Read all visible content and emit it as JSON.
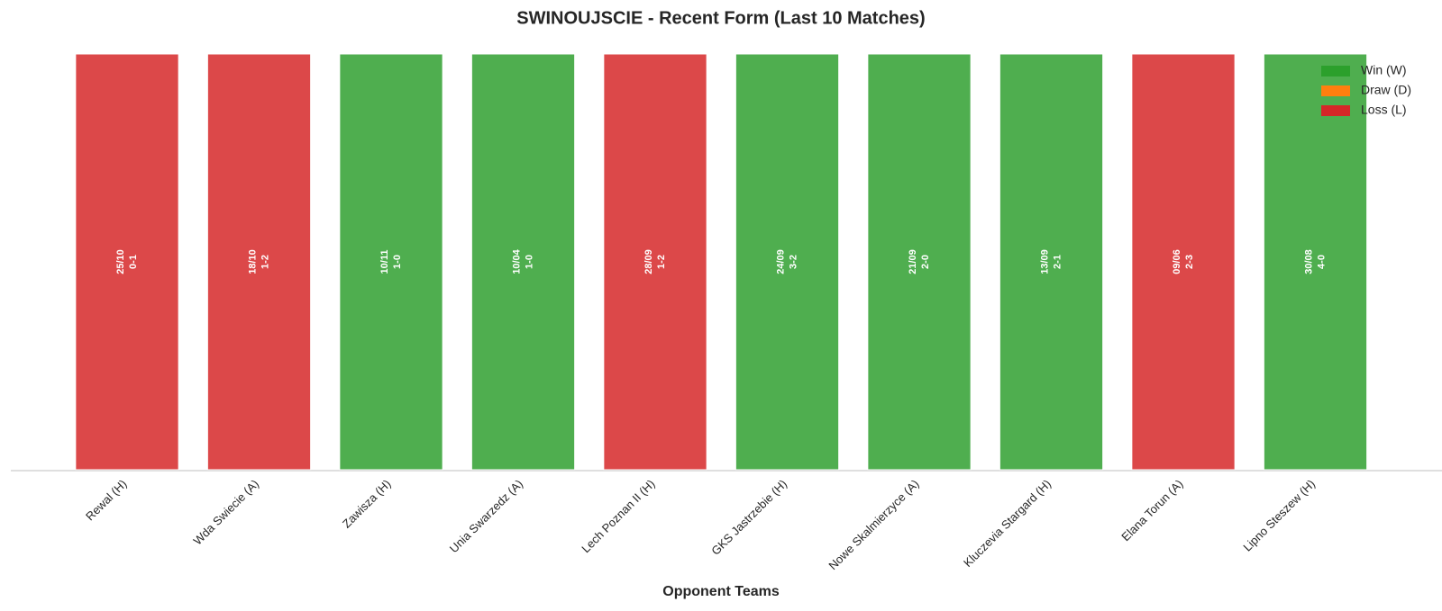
{
  "chart_data": {
    "type": "bar",
    "title": "SWINOUJSCIE - Recent Form (Last 10 Matches)",
    "x_label": "Opponent Teams",
    "categories": [
      "Rewal (H)",
      "Wda Swiecie (A)",
      "Zawisza (H)",
      "Unia Swarzedz (A)",
      "Lech Poznan II (H)",
      "GKS Jastrzebie (H)",
      "Nowe Skalmierzyce (A)",
      "Kluczevia Stargard (H)",
      "Elana Torun (A)",
      "Lipno Steszew (H)"
    ],
    "values": [
      1,
      1,
      1,
      1,
      1,
      1,
      1,
      1,
      1,
      1
    ],
    "value_labels": [
      [
        "25/10",
        "0-1"
      ],
      [
        "18/10",
        "1-2"
      ],
      [
        "10/11",
        "1-0"
      ],
      [
        "10/04",
        "1-0"
      ],
      [
        "28/09",
        "1-2"
      ],
      [
        "24/09",
        "3-2"
      ],
      [
        "21/09",
        "2-0"
      ],
      [
        "13/09",
        "2-1"
      ],
      [
        "09/06",
        "2-3"
      ],
      [
        "30/08",
        "4-0"
      ]
    ],
    "colors": [
      "#dc4849",
      "#dc4849",
      "#4fae4f",
      "#4fae4f",
      "#dc4849",
      "#4fae4f",
      "#4fae4f",
      "#4fae4f",
      "#dc4849",
      "#4fae4f"
    ],
    "ylim": [
      0,
      1
    ],
    "legend": [
      {
        "name": "Win (W)",
        "color": "#2ca02c"
      },
      {
        "name": "Draw (D)",
        "color": "#ff7f0e"
      },
      {
        "name": "Loss (L)",
        "color": "#d62728"
      }
    ],
    "legend_position": "upper right"
  }
}
